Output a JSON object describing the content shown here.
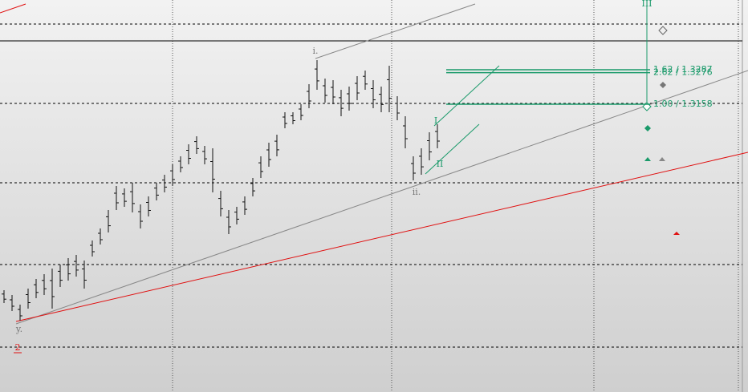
{
  "chart_data": {
    "type": "ohlc",
    "ylim": [
      1.2081,
      1.3548
    ],
    "high": [
      1.2462,
      1.2444,
      1.2408,
      1.2468,
      1.2504,
      1.2522,
      1.2543,
      1.2558,
      1.2582,
      1.2594,
      1.2573,
      1.2648,
      1.2693,
      1.2762,
      1.2852,
      1.2843,
      1.2864,
      1.2783,
      1.2813,
      1.2864,
      1.2894,
      1.2933,
      1.2963,
      1.3008,
      1.3038,
      1.3002,
      1.2993,
      1.2834,
      1.2762,
      1.2774,
      1.2813,
      1.2882,
      1.2963,
      1.3014,
      1.3044,
      1.3128,
      1.3128,
      1.3158,
      1.3233,
      1.3323,
      1.3254,
      1.3248,
      1.3212,
      1.3224,
      1.3263,
      1.3284,
      1.3248,
      1.3224,
      1.3302,
      1.3188,
      1.3113,
      1.2963,
      1.2993,
      1.3053,
      1.3083
    ],
    "low": [
      1.2414,
      1.2384,
      1.2348,
      1.2393,
      1.2432,
      1.2444,
      1.2393,
      1.2474,
      1.2498,
      1.2513,
      1.2468,
      1.2588,
      1.2633,
      1.2678,
      1.2762,
      1.2774,
      1.2753,
      1.2693,
      1.2738,
      1.2798,
      1.2828,
      1.2852,
      1.2903,
      1.2933,
      1.2972,
      1.2933,
      1.2828,
      1.2738,
      1.2672,
      1.2708,
      1.2744,
      1.2813,
      1.2882,
      1.2924,
      1.2963,
      1.3068,
      1.3083,
      1.3098,
      1.3143,
      1.3212,
      1.3164,
      1.3158,
      1.3113,
      1.3134,
      1.3173,
      1.3212,
      1.3143,
      1.3128,
      1.3128,
      1.3098,
      1.2993,
      1.2873,
      1.2894,
      1.2948,
      1.2993
    ],
    "levels": [
      {
        "value": 1.3287,
        "label": "1.62 / 1.3287"
      },
      {
        "value": 1.3276,
        "label": "2.62 / 1.3276"
      },
      {
        "value": 1.3158,
        "label": "1.00 / 1.3158"
      }
    ],
    "annotations": [
      "i.",
      "ii.",
      "y.",
      "2",
      "I",
      "II",
      "III"
    ]
  }
}
